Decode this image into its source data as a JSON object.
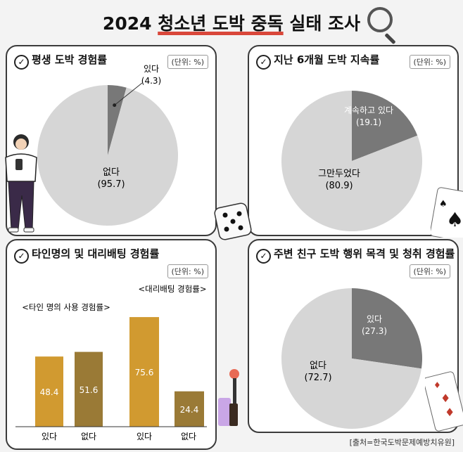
{
  "title": {
    "prefix": "2024 ",
    "highlight": "청소년 도박 중독",
    "suffix": " 실태 조사"
  },
  "unit_label": "(단위: %)",
  "source": "[출처=한국도박문제예방치유원]",
  "colors": {
    "dark": "#787878",
    "light": "#d6d6d6",
    "bar_gold": "#d19a30",
    "bar_olive": "#9a7a36"
  },
  "chart_data": [
    {
      "type": "pie",
      "title": "평생 도박 경험률",
      "slices": [
        {
          "label": "있다",
          "value": 4.3,
          "value_text": "(4.3)"
        },
        {
          "label": "없다",
          "value": 95.7,
          "value_text": "(95.7)"
        }
      ]
    },
    {
      "type": "pie",
      "title": "지난 6개월 도박 지속률",
      "slices": [
        {
          "label": "계속하고 있다",
          "value": 19.1,
          "value_text": "(19.1)"
        },
        {
          "label": "그만두었다",
          "value": 80.9,
          "value_text": "(80.9)"
        }
      ]
    },
    {
      "type": "bar",
      "title": "타인명의 및 대리배팅 경험률",
      "groups": [
        {
          "name": "<타인 명의 사용 경험률>",
          "categories": [
            "있다",
            "없다"
          ],
          "values": [
            48.4,
            51.6
          ]
        },
        {
          "name": "<대리배팅 경험률>",
          "categories": [
            "있다",
            "없다"
          ],
          "values": [
            75.6,
            24.4
          ]
        }
      ]
    },
    {
      "type": "pie",
      "title": "주변 친구 도박 행위 목격 및 청취 경험률",
      "slices": [
        {
          "label": "있다",
          "value": 27.3,
          "value_text": "(27.3)"
        },
        {
          "label": "없다",
          "value": 72.7,
          "value_text": "(72.7)"
        }
      ]
    }
  ]
}
